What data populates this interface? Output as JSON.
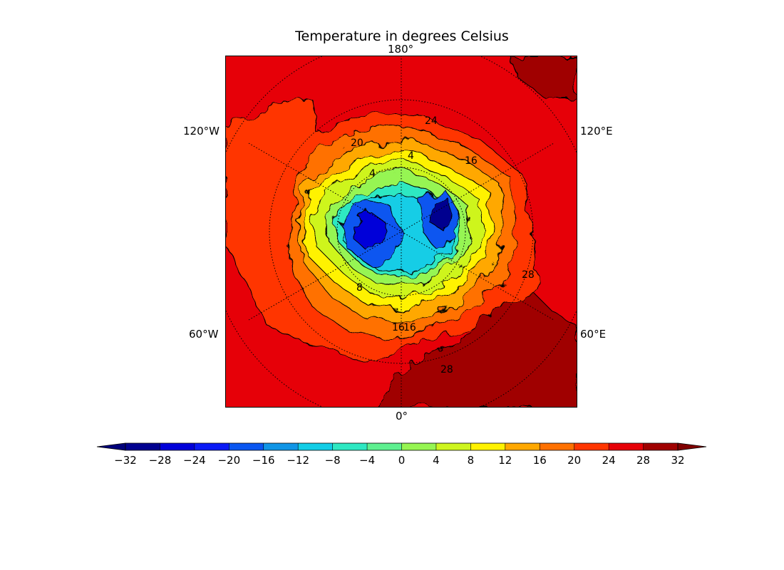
{
  "title": "Temperature in degrees Celsius",
  "map": {
    "projection": "north polar stereographic",
    "longitude_labels": {
      "top": "180°",
      "bottom": "0°",
      "left_upper": "120°W",
      "left_lower": "60°W",
      "right_upper": "120°E",
      "right_lower": "60°E"
    },
    "contour_labels": [
      "24",
      "20",
      "4",
      "4",
      "16",
      "8",
      "16",
      "16",
      "28",
      "28"
    ]
  },
  "colorbar": {
    "extend": "both",
    "ticks": [
      "−32",
      "−28",
      "−24",
      "−20",
      "−16",
      "−12",
      "−8",
      "−4",
      "0",
      "4",
      "8",
      "12",
      "16",
      "20",
      "24",
      "28",
      "32"
    ],
    "colors": [
      "#00008f",
      "#0000d9",
      "#0a1af5",
      "#0a56f0",
      "#1095e6",
      "#12cde6",
      "#2ee8c2",
      "#5ef090",
      "#96f552",
      "#cef51f",
      "#fff200",
      "#ffa800",
      "#ff7100",
      "#ff3600",
      "#e60008",
      "#a00000"
    ],
    "under_color": "#00007a",
    "over_color": "#800000"
  }
}
